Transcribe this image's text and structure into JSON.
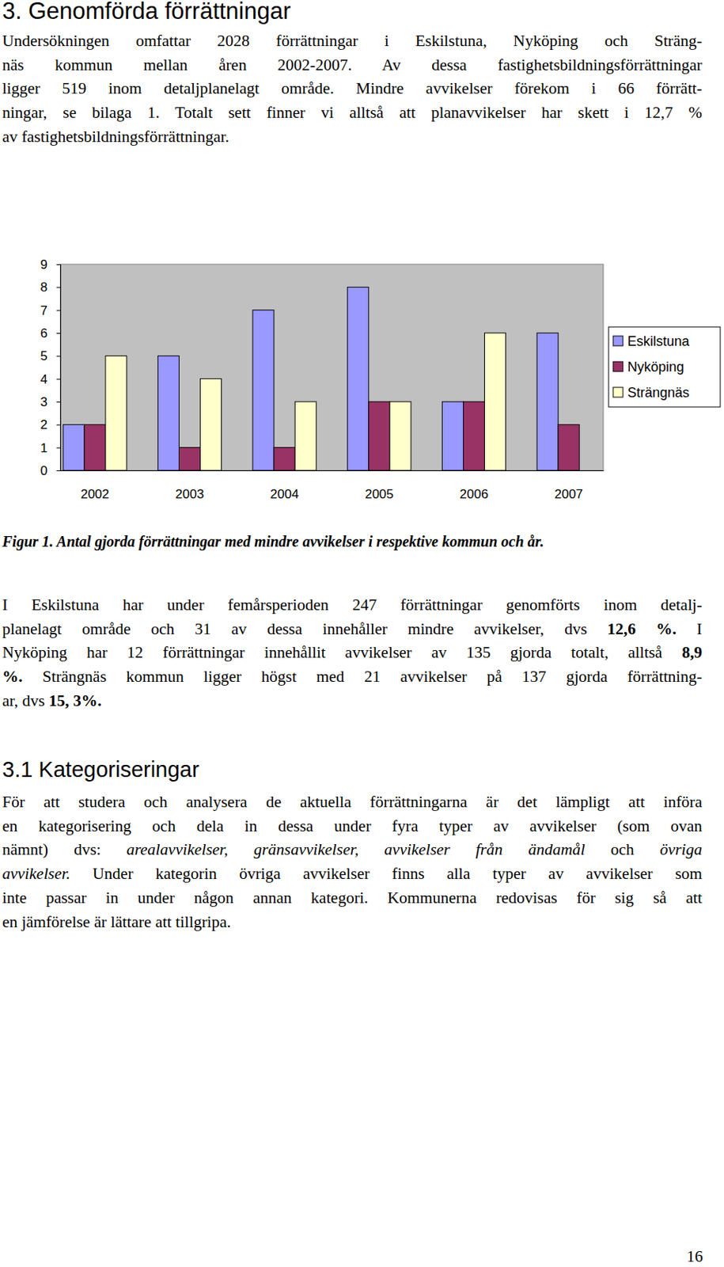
{
  "heading": "3. Genomförda förrättningar",
  "intro": {
    "lines": [
      [
        "Undersökningen omfattar 2028 förrättningar i Eskilstuna, Nyköping och Sträng-"
      ],
      [
        "näs kommun mellan åren 2002-2007.  Av dessa fastighetsbildningsförrättningar"
      ],
      [
        "ligger 519 inom detaljplanelagt område. Mindre avvikelser förekom i 66 förrätt-"
      ],
      [
        "ningar, se bilaga 1. Totalt sett finner vi alltså att planavvikelser har skett i 12,7 %"
      ],
      [
        "av fastighetsbildningsförrättningar."
      ]
    ]
  },
  "chart_data": {
    "type": "bar",
    "categories": [
      "2002",
      "2003",
      "2004",
      "2005",
      "2006",
      "2007"
    ],
    "series": [
      {
        "name": "Eskilstuna",
        "color": "#9999ff",
        "values": [
          2,
          5,
          7,
          8,
          3,
          6
        ]
      },
      {
        "name": "Nyköping",
        "color": "#993366",
        "values": [
          2,
          1,
          1,
          3,
          3,
          2
        ]
      },
      {
        "name": "Strängnäs",
        "color": "#ffffcc",
        "values": [
          5,
          4,
          3,
          3,
          6,
          0
        ]
      }
    ],
    "ylim": [
      0,
      9
    ],
    "yticks": [
      0,
      1,
      2,
      3,
      4,
      5,
      6,
      7,
      8,
      9
    ],
    "grid": false,
    "legend": "right"
  },
  "caption": "Figur 1. Antal gjorda förrättningar med mindre avvikelser i respektive kommun och år.",
  "body": {
    "lines": [
      [
        "I Eskilstuna har under femårsperioden 247 förrättningar genomförts inom detalj-"
      ],
      [
        "planelagt område och 31 av dessa innehåller mindre avvikelser, dvs ",
        {
          "text": "12,6 %.",
          "style": "bold"
        },
        " I"
      ],
      [
        "Nyköping har 12 förrättningar innehållit avvikelser av 135 gjorda totalt, alltså ",
        {
          "text": "8,9",
          "style": "bold"
        }
      ],
      [
        {
          "text": "%.",
          "style": "bold"
        },
        " Strängnäs kommun ligger högst med 21 avvikelser på 137 gjorda förrättning-"
      ],
      [
        "ar, dvs ",
        {
          "text": "15, 3%.",
          "style": "bold"
        }
      ]
    ]
  },
  "section_heading": "3.1 Kategoriseringar",
  "section": {
    "lines": [
      [
        "För att  studera och analysera de aktuella förrättningarna är det lämpligt att införa"
      ],
      [
        "en kategorisering och dela in dessa under fyra typer av avvikelser (som ovan"
      ],
      [
        "nämnt) dvs: ",
        {
          "text": "arealavvikelser, gränsavvikelser, avvikelser från ändamål",
          "style": "italic"
        },
        " och ",
        {
          "text": "övriga",
          "style": "italic"
        }
      ],
      [
        {
          "text": "avvikelser.",
          "style": "italic"
        },
        " Under kategorin övriga avvikelser finns alla typer av avvikelser som"
      ],
      [
        "inte passar in under någon annan kategori.  Kommunerna redovisas för sig så att"
      ],
      [
        "en jämförelse är lättare att tillgripa."
      ]
    ]
  },
  "page_number": "16"
}
